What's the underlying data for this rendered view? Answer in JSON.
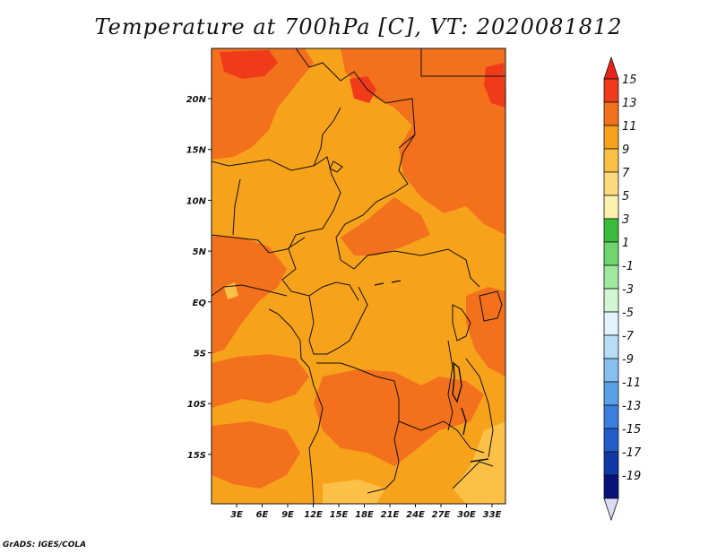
{
  "title": "Temperature at 700hPa [C], VT: 2020081812",
  "credit": "GrADS: IGES/COLA",
  "map": {
    "lat_ticks": [
      "20N",
      "15N",
      "10N",
      "5N",
      "EQ",
      "5S",
      "10S",
      "15S"
    ],
    "lon_ticks": [
      "3E",
      "6E",
      "9E",
      "12E",
      "15E",
      "18E",
      "21E",
      "24E",
      "27E",
      "30E",
      "33E"
    ],
    "colors": {
      "base": "#f7a21b",
      "warm": "#f3701c",
      "hot": "#ef3b1a",
      "mild": "#fcc047"
    }
  },
  "colorbar": {
    "labels": [
      "15",
      "13",
      "11",
      "9",
      "7",
      "5",
      "3",
      "1",
      "-1",
      "-3",
      "-5",
      "-7",
      "-9",
      "-11",
      "-13",
      "-15",
      "-17",
      "-19"
    ],
    "colors": [
      "#ef3b1a",
      "#f3701c",
      "#f7a21b",
      "#fcc047",
      "#feda7e",
      "#fef1ad",
      "#3bbc3b",
      "#6fd66f",
      "#9fea9f",
      "#d2f6d2",
      "#e2f4fb",
      "#b8def6",
      "#86bff0",
      "#5aa0e8",
      "#3a7fde",
      "#215cc9",
      "#1037a6",
      "#07127a"
    ],
    "top_arrow_color": "#e8231a",
    "bottom_arrow_color": "#dcdcf5"
  }
}
